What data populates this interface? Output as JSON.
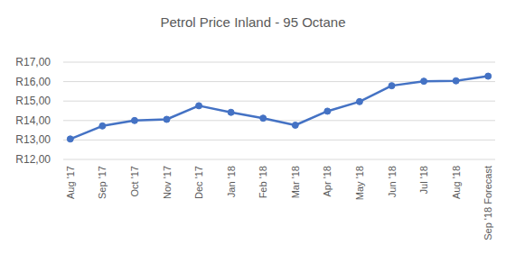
{
  "chart_data": {
    "type": "line",
    "title": "Petrol Price Inland - 95 Octane",
    "categories": [
      "Aug '17",
      "Sep '17",
      "Oct '17",
      "Nov '17",
      "Dec '17",
      "Jan '18",
      "Feb '18",
      "Mar '18",
      "Apr '18",
      "May '18",
      "Jun '18",
      "Jul '18",
      "Aug '18",
      "Sep '18 Forecast"
    ],
    "values": [
      13.05,
      13.72,
      14.0,
      14.06,
      14.76,
      14.42,
      14.12,
      13.76,
      14.48,
      14.97,
      15.79,
      16.02,
      16.04,
      16.28
    ],
    "color": "#4472c4",
    "marker": "circle",
    "ylim": [
      12,
      17
    ],
    "yticks": [
      {
        "value": 12,
        "label": "R12,00"
      },
      {
        "value": 13,
        "label": "R13,00"
      },
      {
        "value": 14,
        "label": "R14,00"
      },
      {
        "value": 15,
        "label": "R15,00"
      },
      {
        "value": 16,
        "label": "R16,00"
      },
      {
        "value": 17,
        "label": "R17,00"
      }
    ],
    "grid": true
  }
}
